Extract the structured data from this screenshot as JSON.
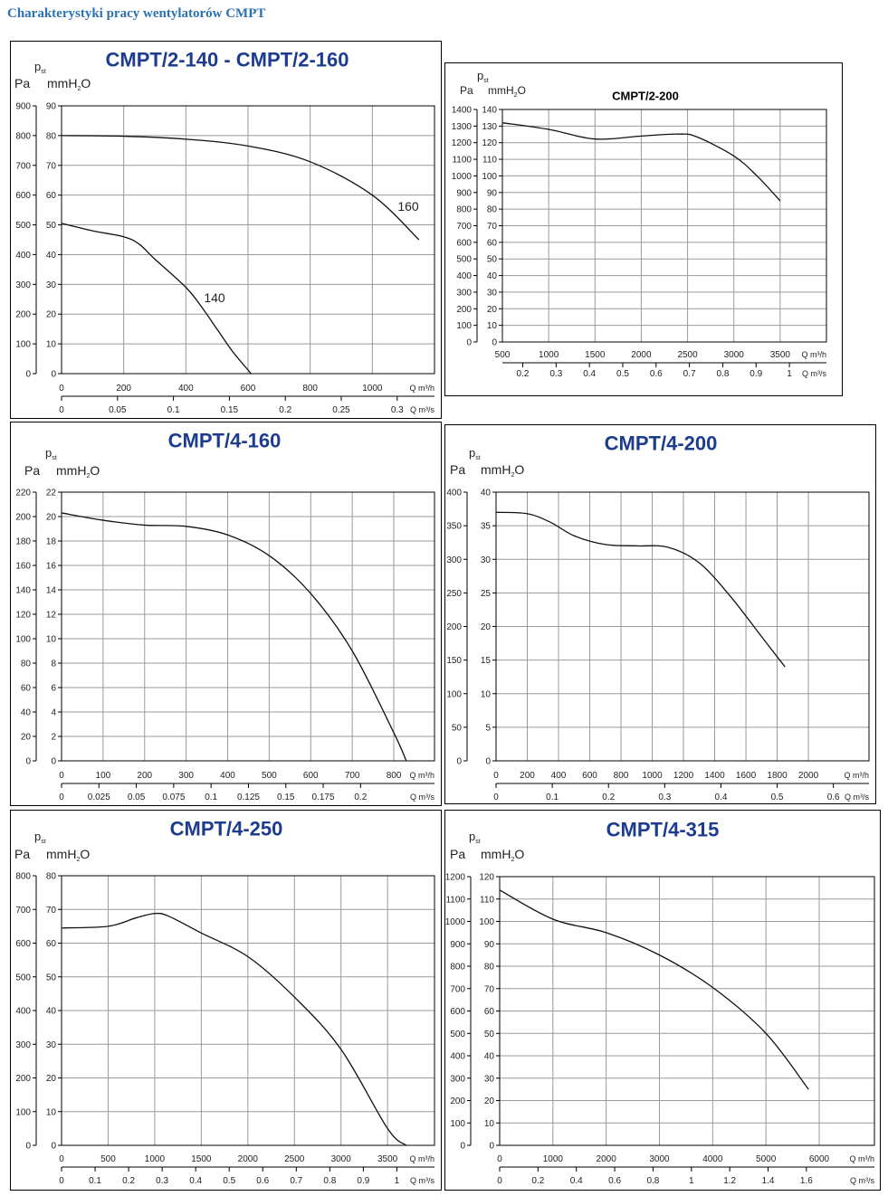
{
  "page_title": "Charakterystyki pracy wentylatorów CMPT",
  "colors": {
    "title_blue": "#1b3c8f",
    "grid": "#9a9a9a",
    "curve": "#111111"
  },
  "labels": {
    "pst": "p",
    "pst_sub": "st",
    "pa": "Pa",
    "mm": "mmH",
    "mm_sub": "2",
    "mm_end": "O",
    "q_h": "Q m³/h",
    "q_s": "Q m³/s"
  },
  "chart_data": [
    {
      "type": "line",
      "title": "CMPT/2-140 - CMPT/2-160",
      "title_color": "#1b3c8f",
      "xlabel": "Q m³/h",
      "x2label": "Q m³/s",
      "ylabel": "pst Pa / mmH2O",
      "y_pa_ticks": [
        0,
        100,
        200,
        300,
        400,
        500,
        600,
        700,
        800,
        900
      ],
      "y_mm_ticks": [
        0,
        10,
        20,
        30,
        40,
        50,
        60,
        70,
        80,
        90
      ],
      "x_ticks": [
        0,
        200,
        400,
        600,
        800,
        1000
      ],
      "x2_ticks": [
        "0",
        "0.05",
        "0.1",
        "0.15",
        "0.2",
        "0.25",
        "0.3"
      ],
      "xlim": [
        0,
        1200
      ],
      "ylim": [
        0,
        90
      ],
      "series": [
        {
          "name": "160",
          "points": [
            [
              0,
              80
            ],
            [
              200,
              79.8
            ],
            [
              400,
              78.8
            ],
            [
              600,
              76.5
            ],
            [
              800,
              71.2
            ],
            [
              1000,
              60
            ],
            [
              1150,
              45
            ]
          ]
        },
        {
          "name": "140",
          "points": [
            [
              0,
              50.5
            ],
            [
              100,
              48
            ],
            [
              200,
              46
            ],
            [
              250,
              43.5
            ],
            [
              300,
              38.5
            ],
            [
              400,
              29
            ],
            [
              450,
              22.5
            ],
            [
              500,
              15
            ],
            [
              550,
              7.5
            ],
            [
              610,
              0
            ]
          ]
        }
      ]
    },
    {
      "type": "line",
      "title": "CMPT/2-200",
      "title_color": "#000000",
      "xlabel": "Q m³/h",
      "x2label": "Q m³/s",
      "ylabel": "pst Pa / mmH2O",
      "y_pa_ticks": [
        0,
        100,
        200,
        300,
        400,
        500,
        600,
        700,
        800,
        900,
        1000,
        1100,
        1200,
        1300,
        1400
      ],
      "y_mm_ticks": [
        0,
        10,
        20,
        30,
        40,
        50,
        60,
        70,
        80,
        90,
        100,
        110,
        120,
        130,
        140
      ],
      "x_ticks": [
        500,
        1000,
        1500,
        2000,
        2500,
        3000,
        3500
      ],
      "x2_ticks": [
        "0.2",
        "0.3",
        "0.4",
        "0.5",
        "0.6",
        "0.7",
        "0.8",
        "0.9",
        "1"
      ],
      "xlim": [
        500,
        4000
      ],
      "ylim": [
        0,
        140
      ],
      "series": [
        {
          "name": "CMPT/2-200",
          "points": [
            [
              500,
              132
            ],
            [
              1000,
              128
            ],
            [
              1500,
              122.2
            ],
            [
              2000,
              124
            ],
            [
              2400,
              125.2
            ],
            [
              2600,
              123.5
            ],
            [
              3000,
              112
            ],
            [
              3250,
              100
            ],
            [
              3500,
              85
            ]
          ]
        }
      ]
    },
    {
      "type": "line",
      "title": "CMPT/4-160",
      "title_color": "#1b3c8f",
      "xlabel": "Q m³/h",
      "x2label": "Q m³/s",
      "ylabel": "pst Pa / mmH2O",
      "y_pa_ticks": [
        0,
        20,
        40,
        60,
        80,
        100,
        120,
        140,
        160,
        180,
        200,
        220
      ],
      "y_mm_ticks": [
        0,
        2,
        4,
        6,
        8,
        10,
        12,
        14,
        16,
        18,
        20,
        22
      ],
      "x_ticks": [
        0,
        100,
        200,
        300,
        400,
        500,
        600,
        700,
        800
      ],
      "x2_ticks": [
        "0",
        "0.025",
        "0.05",
        "0.075",
        "0.1",
        "0.125",
        "0.15",
        "0.175",
        "0.2"
      ],
      "xlim": [
        0,
        898
      ],
      "ylim": [
        0,
        22
      ],
      "series": [
        {
          "name": "CMPT/4-160",
          "points": [
            [
              0,
              20.3
            ],
            [
              100,
              19.7
            ],
            [
              200,
              19.3
            ],
            [
              300,
              19.2
            ],
            [
              400,
              18.5
            ],
            [
              500,
              16.8
            ],
            [
              600,
              13.7
            ],
            [
              700,
              9
            ],
            [
              800,
              2.3
            ],
            [
              830,
              0
            ]
          ]
        }
      ]
    },
    {
      "type": "line",
      "title": "CMPT/4-200",
      "title_color": "#1b3c8f",
      "xlabel": "Q m³/h",
      "x2label": "Q m³/s",
      "ylabel": "pst Pa / mmH2O",
      "y_pa_ticks": [
        0,
        50,
        100,
        150,
        200,
        250,
        300,
        350,
        400
      ],
      "y_mm_ticks": [
        0,
        5,
        10,
        15,
        20,
        25,
        30,
        35,
        40
      ],
      "x_ticks": [
        0,
        200,
        400,
        600,
        800,
        1000,
        1200,
        1400,
        1600,
        1800,
        2000
      ],
      "x2_ticks": [
        "0",
        "0.1",
        "0.2",
        "0.3",
        "0.4",
        "0.5",
        "0.6"
      ],
      "xlim": [
        0,
        2388
      ],
      "ylim": [
        0,
        40
      ],
      "series": [
        {
          "name": "CMPT/4-200",
          "points": [
            [
              0,
              37
            ],
            [
              200,
              36.8
            ],
            [
              350,
              35.5
            ],
            [
              500,
              33.5
            ],
            [
              700,
              32.2
            ],
            [
              900,
              32
            ],
            [
              1100,
              31.8
            ],
            [
              1300,
              29.5
            ],
            [
              1500,
              24.5
            ],
            [
              1700,
              18.5
            ],
            [
              1850,
              14
            ]
          ]
        }
      ]
    },
    {
      "type": "line",
      "title": "CMPT/4-250",
      "title_color": "#1b3c8f",
      "xlabel": "Q m³/h",
      "x2label": "Q m³/s",
      "ylabel": "pst Pa / mmH2O",
      "y_pa_ticks": [
        0,
        100,
        200,
        300,
        400,
        500,
        600,
        700,
        800
      ],
      "y_mm_ticks": [
        0,
        10,
        20,
        30,
        40,
        50,
        60,
        70,
        80
      ],
      "x_ticks": [
        0,
        500,
        1000,
        1500,
        2000,
        2500,
        3000,
        3500
      ],
      "x2_ticks": [
        "0",
        "0.1",
        "0.2",
        "0.3",
        "0.4",
        "0.5",
        "0.6",
        "0.7",
        "0.8",
        "0.9",
        "1"
      ],
      "xlim": [
        0,
        4004
      ],
      "ylim": [
        0,
        80
      ],
      "series": [
        {
          "name": "CMPT/4-250",
          "points": [
            [
              0,
              64.5
            ],
            [
              500,
              65
            ],
            [
              800,
              67.5
            ],
            [
              1000,
              68.8
            ],
            [
              1150,
              68
            ],
            [
              1500,
              63
            ],
            [
              2000,
              56
            ],
            [
              2500,
              44
            ],
            [
              3000,
              28.5
            ],
            [
              3500,
              5
            ],
            [
              3700,
              0
            ]
          ]
        }
      ]
    },
    {
      "type": "line",
      "title": "CMPT/4-315",
      "title_color": "#1b3c8f",
      "xlabel": "Q m³/h",
      "x2label": "Q m³/s",
      "ylabel": "pst Pa / mmH2O",
      "y_pa_ticks": [
        0,
        100,
        200,
        300,
        400,
        500,
        600,
        700,
        800,
        900,
        1000,
        1100,
        1200
      ],
      "y_mm_ticks": [
        0,
        10,
        20,
        30,
        40,
        50,
        60,
        70,
        80,
        90,
        100,
        110,
        120
      ],
      "x_ticks": [
        0,
        1000,
        2000,
        3000,
        4000,
        5000,
        6000
      ],
      "x2_ticks": [
        "0",
        "0.2",
        "0.4",
        "0.6",
        "0.8",
        "1",
        "1.2",
        "1.4",
        "1.6"
      ],
      "xlim": [
        0,
        7037
      ],
      "ylim": [
        0,
        120
      ],
      "series": [
        {
          "name": "CMPT/4-315",
          "points": [
            [
              0,
              114
            ],
            [
              1000,
              101
            ],
            [
              2000,
              95
            ],
            [
              3000,
              85
            ],
            [
              4000,
              70.5
            ],
            [
              5000,
              50
            ],
            [
              5800,
              25
            ]
          ]
        }
      ]
    }
  ]
}
